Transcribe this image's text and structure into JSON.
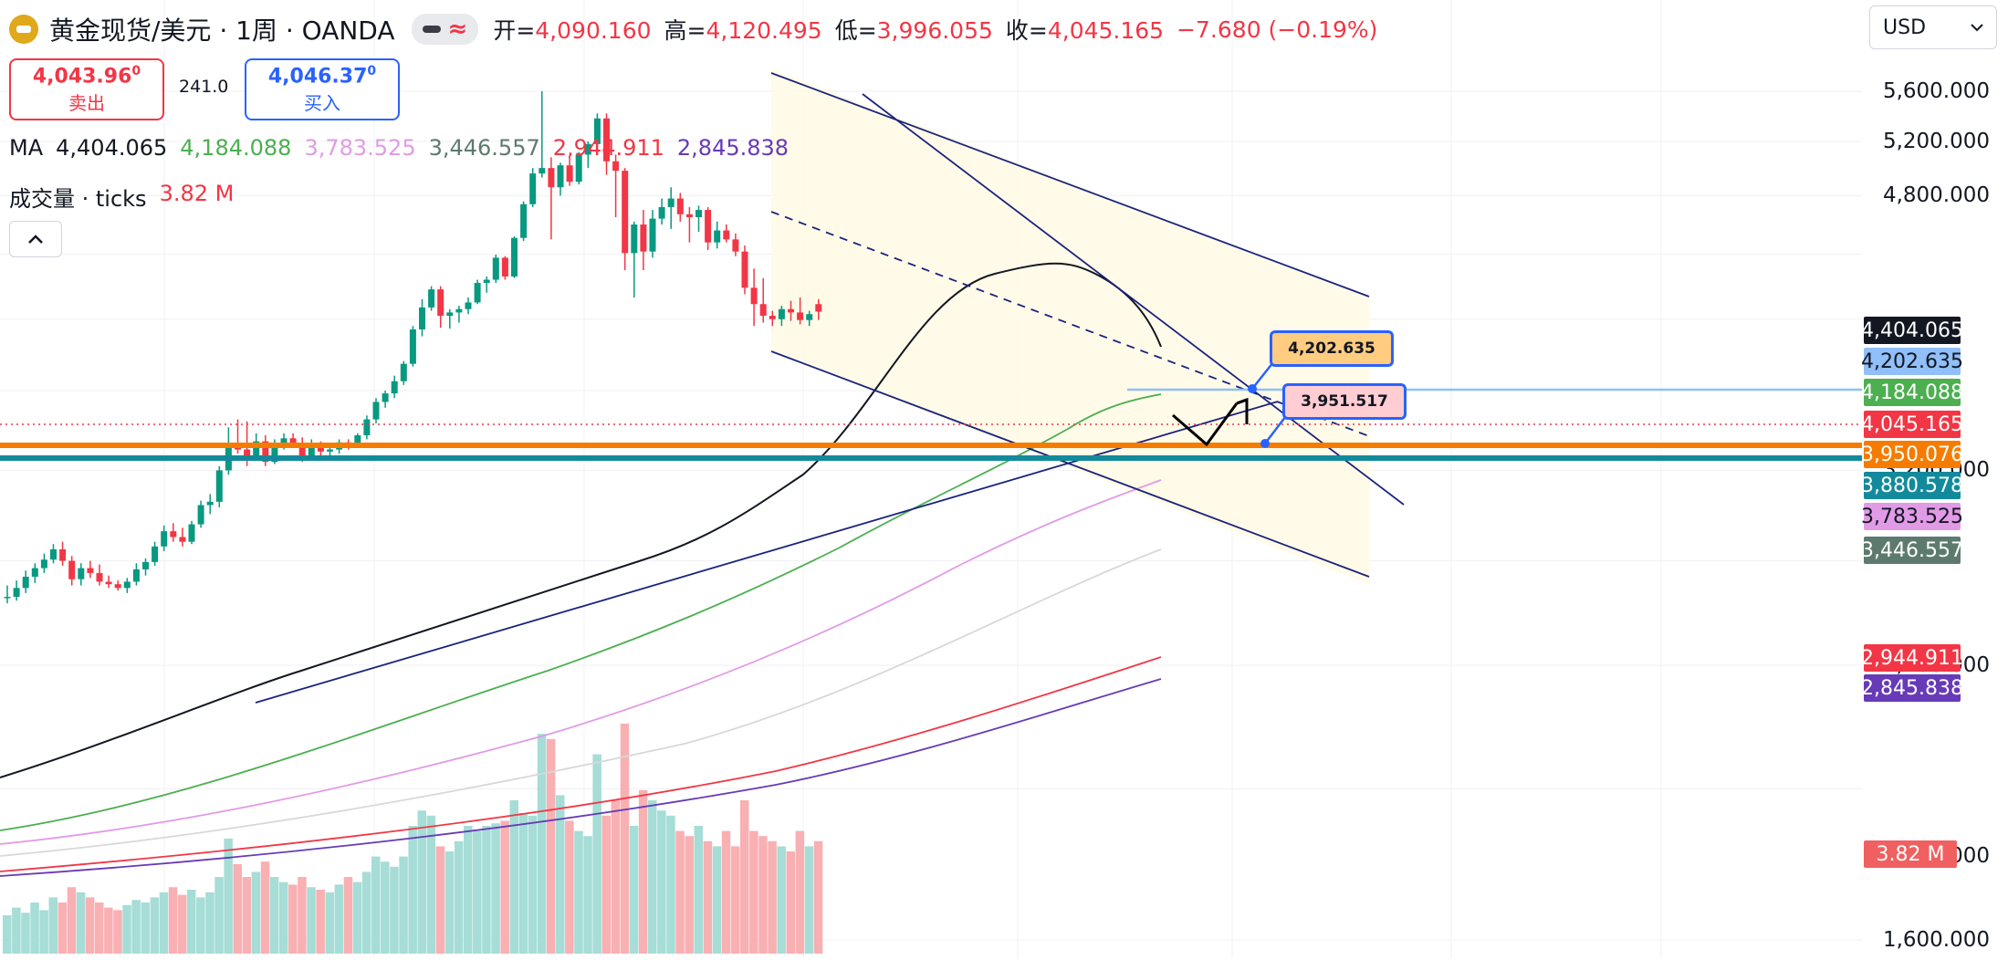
{
  "header": {
    "symbol": "黄金现货/美元 · 1周 · OANDA",
    "ohlc": [
      {
        "k": "开=",
        "v": "4,090.160"
      },
      {
        "k": "高=",
        "v": "4,120.495"
      },
      {
        "k": "低=",
        "v": "3,996.055"
      },
      {
        "k": "收=",
        "v": "4,045.165"
      }
    ],
    "change": "−7.680 (−0.19%)"
  },
  "trade": {
    "sell_price": "4,043.96",
    "sell_sup": "0",
    "sell_label": "卖出",
    "spread": "241.0",
    "buy_price": "4,046.37",
    "buy_sup": "0",
    "buy_label": "买入"
  },
  "ma_legend": {
    "label": "MA",
    "values": [
      {
        "text": "4,404.065",
        "color": "#131722"
      },
      {
        "text": "4,184.088",
        "color": "#4caf50"
      },
      {
        "text": "3,783.525",
        "color": "#e19be6"
      },
      {
        "text": "3,446.557",
        "color": "#5d7a6e"
      },
      {
        "text": "2,944.911",
        "color": "#f23645"
      },
      {
        "text": "2,845.838",
        "color": "#673ab7"
      }
    ]
  },
  "volume_legend": {
    "label": "成交量 · ticks",
    "value": "3.82 M"
  },
  "collapse_icon": "chevron-up-icon",
  "currency": {
    "selected": "USD"
  },
  "price_axis": {
    "ticks": [
      "5,600.000",
      "5,200.000",
      "4,800.000",
      "3,200.000",
      "2,400.000",
      "1,600.000"
    ],
    "partial_tick": "000"
  },
  "price_tags": [
    {
      "text": "4,404.065",
      "bg": "#131722",
      "fg": "#ffffff"
    },
    {
      "text": "4,202.635",
      "bg": "#90bff9",
      "fg": "#131722"
    },
    {
      "text": "4,184.088",
      "bg": "#4caf50",
      "fg": "#ffffff"
    },
    {
      "text": "4,045.165",
      "bg": "#f23645",
      "fg": "#ffffff"
    },
    {
      "text": "3,950.076",
      "bg": "#f57c00",
      "fg": "#ffffff"
    },
    {
      "text": "3,880.578",
      "bg": "#138a9c",
      "fg": "#ffffff"
    },
    {
      "text": "3,783.525",
      "bg": "#e19be6",
      "fg": "#131722"
    },
    {
      "text": "3,446.557",
      "bg": "#5d7a6e",
      "fg": "#ffffff"
    },
    {
      "text": "2,944.911",
      "bg": "#f23645",
      "fg": "#ffffff"
    },
    {
      "text": "2,845.838",
      "bg": "#673ab7",
      "fg": "#ffffff"
    },
    {
      "text": "3.82 M",
      "bg": "#f06060",
      "fg": "#ffffff"
    }
  ],
  "callouts": [
    {
      "text": "4,202.635",
      "bg": "#ffcc80",
      "border": "#2962ff"
    },
    {
      "text": "3,951.517",
      "bg": "#ffcdd2",
      "border": "#2962ff"
    }
  ],
  "chart_data": {
    "type": "candlestick",
    "title": "黄金现货/美元 · 1周 · OANDA",
    "y_scale": "log",
    "ylim": [
      1600,
      5800
    ],
    "up_color": "#089981",
    "down_color": "#f23645",
    "candles": [
      {
        "o": 2650,
        "h": 2700,
        "l": 2630,
        "c": 2655
      },
      {
        "o": 2655,
        "h": 2720,
        "l": 2640,
        "c": 2690
      },
      {
        "o": 2690,
        "h": 2760,
        "l": 2670,
        "c": 2735
      },
      {
        "o": 2735,
        "h": 2790,
        "l": 2710,
        "c": 2770
      },
      {
        "o": 2770,
        "h": 2830,
        "l": 2750,
        "c": 2805
      },
      {
        "o": 2805,
        "h": 2870,
        "l": 2790,
        "c": 2848
      },
      {
        "o": 2848,
        "h": 2880,
        "l": 2780,
        "c": 2800
      },
      {
        "o": 2800,
        "h": 2820,
        "l": 2700,
        "c": 2725
      },
      {
        "o": 2725,
        "h": 2790,
        "l": 2700,
        "c": 2770
      },
      {
        "o": 2770,
        "h": 2800,
        "l": 2730,
        "c": 2750
      },
      {
        "o": 2750,
        "h": 2785,
        "l": 2700,
        "c": 2715
      },
      {
        "o": 2715,
        "h": 2740,
        "l": 2690,
        "c": 2705
      },
      {
        "o": 2705,
        "h": 2720,
        "l": 2680,
        "c": 2690
      },
      {
        "o": 2690,
        "h": 2730,
        "l": 2670,
        "c": 2715
      },
      {
        "o": 2715,
        "h": 2790,
        "l": 2700,
        "c": 2765
      },
      {
        "o": 2765,
        "h": 2810,
        "l": 2740,
        "c": 2795
      },
      {
        "o": 2795,
        "h": 2880,
        "l": 2780,
        "c": 2860
      },
      {
        "o": 2860,
        "h": 2950,
        "l": 2840,
        "c": 2925
      },
      {
        "o": 2925,
        "h": 2960,
        "l": 2880,
        "c": 2900
      },
      {
        "o": 2900,
        "h": 2940,
        "l": 2860,
        "c": 2880
      },
      {
        "o": 2880,
        "h": 2970,
        "l": 2870,
        "c": 2955
      },
      {
        "o": 2955,
        "h": 3060,
        "l": 2940,
        "c": 3040
      },
      {
        "o": 3040,
        "h": 3090,
        "l": 3000,
        "c": 3055
      },
      {
        "o": 3055,
        "h": 3220,
        "l": 3030,
        "c": 3200
      },
      {
        "o": 3200,
        "h": 3410,
        "l": 3180,
        "c": 3330
      },
      {
        "o": 3330,
        "h": 3450,
        "l": 3280,
        "c": 3300
      },
      {
        "o": 3300,
        "h": 3440,
        "l": 3220,
        "c": 3270
      },
      {
        "o": 3270,
        "h": 3380,
        "l": 3250,
        "c": 3340
      },
      {
        "o": 3340,
        "h": 3370,
        "l": 3220,
        "c": 3240
      },
      {
        "o": 3240,
        "h": 3350,
        "l": 3230,
        "c": 3320
      },
      {
        "o": 3320,
        "h": 3380,
        "l": 3300,
        "c": 3355
      },
      {
        "o": 3355,
        "h": 3380,
        "l": 3310,
        "c": 3330
      },
      {
        "o": 3330,
        "h": 3360,
        "l": 3240,
        "c": 3260
      },
      {
        "o": 3260,
        "h": 3350,
        "l": 3250,
        "c": 3320
      },
      {
        "o": 3320,
        "h": 3340,
        "l": 3270,
        "c": 3290
      },
      {
        "o": 3290,
        "h": 3320,
        "l": 3260,
        "c": 3300
      },
      {
        "o": 3300,
        "h": 3350,
        "l": 3280,
        "c": 3335
      },
      {
        "o": 3335,
        "h": 3350,
        "l": 3300,
        "c": 3320
      },
      {
        "o": 3320,
        "h": 3380,
        "l": 3310,
        "c": 3370
      },
      {
        "o": 3370,
        "h": 3470,
        "l": 3350,
        "c": 3450
      },
      {
        "o": 3450,
        "h": 3560,
        "l": 3430,
        "c": 3540
      },
      {
        "o": 3540,
        "h": 3600,
        "l": 3510,
        "c": 3585
      },
      {
        "o": 3585,
        "h": 3680,
        "l": 3560,
        "c": 3650
      },
      {
        "o": 3650,
        "h": 3760,
        "l": 3630,
        "c": 3745
      },
      {
        "o": 3745,
        "h": 3960,
        "l": 3730,
        "c": 3940
      },
      {
        "o": 3940,
        "h": 4120,
        "l": 3900,
        "c": 4070
      },
      {
        "o": 4070,
        "h": 4200,
        "l": 4050,
        "c": 4180
      },
      {
        "o": 4180,
        "h": 4200,
        "l": 3950,
        "c": 4020
      },
      {
        "o": 4020,
        "h": 4060,
        "l": 3945,
        "c": 4040
      },
      {
        "o": 4040,
        "h": 4080,
        "l": 3980,
        "c": 4060
      },
      {
        "o": 4060,
        "h": 4130,
        "l": 4030,
        "c": 4100
      },
      {
        "o": 4100,
        "h": 4240,
        "l": 4090,
        "c": 4220
      },
      {
        "o": 4220,
        "h": 4260,
        "l": 4160,
        "c": 4240
      },
      {
        "o": 4240,
        "h": 4400,
        "l": 4220,
        "c": 4380
      },
      {
        "o": 4380,
        "h": 4390,
        "l": 4240,
        "c": 4260
      },
      {
        "o": 4260,
        "h": 4520,
        "l": 4250,
        "c": 4510
      },
      {
        "o": 4510,
        "h": 4760,
        "l": 4490,
        "c": 4740
      },
      {
        "o": 4740,
        "h": 5000,
        "l": 4720,
        "c": 4960
      },
      {
        "o": 4960,
        "h": 5600,
        "l": 4930,
        "c": 5000
      },
      {
        "o": 5000,
        "h": 5080,
        "l": 4500,
        "c": 4860
      },
      {
        "o": 4860,
        "h": 5040,
        "l": 4800,
        "c": 5020
      },
      {
        "o": 5020,
        "h": 5080,
        "l": 4870,
        "c": 4900
      },
      {
        "o": 4900,
        "h": 5120,
        "l": 4880,
        "c": 5100
      },
      {
        "o": 5100,
        "h": 5200,
        "l": 5000,
        "c": 5180
      },
      {
        "o": 5180,
        "h": 5420,
        "l": 5100,
        "c": 5380
      },
      {
        "o": 5380,
        "h": 5420,
        "l": 4950,
        "c": 5050
      },
      {
        "o": 5050,
        "h": 5100,
        "l": 4650,
        "c": 4980
      },
      {
        "o": 4980,
        "h": 5000,
        "l": 4300,
        "c": 4410
      },
      {
        "o": 4410,
        "h": 4620,
        "l": 4130,
        "c": 4600
      },
      {
        "o": 4600,
        "h": 4700,
        "l": 4300,
        "c": 4420
      },
      {
        "o": 4420,
        "h": 4700,
        "l": 4380,
        "c": 4640
      },
      {
        "o": 4640,
        "h": 4780,
        "l": 4600,
        "c": 4720
      },
      {
        "o": 4720,
        "h": 4860,
        "l": 4570,
        "c": 4780
      },
      {
        "o": 4780,
        "h": 4820,
        "l": 4620,
        "c": 4670
      },
      {
        "o": 4670,
        "h": 4720,
        "l": 4480,
        "c": 4650
      },
      {
        "o": 4650,
        "h": 4730,
        "l": 4550,
        "c": 4700
      },
      {
        "o": 4700,
        "h": 4720,
        "l": 4430,
        "c": 4480
      },
      {
        "o": 4480,
        "h": 4620,
        "l": 4440,
        "c": 4560
      },
      {
        "o": 4560,
        "h": 4600,
        "l": 4480,
        "c": 4500
      },
      {
        "o": 4500,
        "h": 4540,
        "l": 4390,
        "c": 4420
      },
      {
        "o": 4420,
        "h": 4460,
        "l": 4150,
        "c": 4190
      },
      {
        "o": 4190,
        "h": 4310,
        "l": 3960,
        "c": 4090
      },
      {
        "o": 4090,
        "h": 4250,
        "l": 3980,
        "c": 4020
      },
      {
        "o": 4020,
        "h": 4050,
        "l": 3960,
        "c": 4000
      },
      {
        "o": 4000,
        "h": 4080,
        "l": 3960,
        "c": 4060
      },
      {
        "o": 4060,
        "h": 4110,
        "l": 3990,
        "c": 4040
      },
      {
        "o": 4040,
        "h": 4130,
        "l": 3970,
        "c": 3995
      },
      {
        "o": 3995,
        "h": 4050,
        "l": 3960,
        "c": 4030
      },
      {
        "o": 4090,
        "h": 4120,
        "l": 3996,
        "c": 4045
      }
    ],
    "volume_ratio": [
      0.15,
      0.18,
      0.16,
      0.2,
      0.17,
      0.22,
      0.2,
      0.26,
      0.24,
      0.22,
      0.2,
      0.18,
      0.17,
      0.19,
      0.21,
      0.2,
      0.22,
      0.24,
      0.26,
      0.23,
      0.25,
      0.22,
      0.24,
      0.3,
      0.45,
      0.35,
      0.3,
      0.32,
      0.36,
      0.3,
      0.28,
      0.27,
      0.3,
      0.26,
      0.25,
      0.24,
      0.27,
      0.3,
      0.28,
      0.32,
      0.38,
      0.36,
      0.34,
      0.38,
      0.5,
      0.56,
      0.54,
      0.42,
      0.4,
      0.44,
      0.5,
      0.48,
      0.5,
      0.51,
      0.52,
      0.6,
      0.55,
      0.54,
      0.86,
      0.84,
      0.62,
      0.52,
      0.48,
      0.46,
      0.78,
      0.54,
      0.6,
      0.9,
      0.5,
      0.64,
      0.6,
      0.56,
      0.54,
      0.48,
      0.46,
      0.5,
      0.44,
      0.42,
      0.48,
      0.42,
      0.6,
      0.48,
      0.46,
      0.44,
      0.42,
      0.4,
      0.48,
      0.42,
      0.44
    ]
  }
}
